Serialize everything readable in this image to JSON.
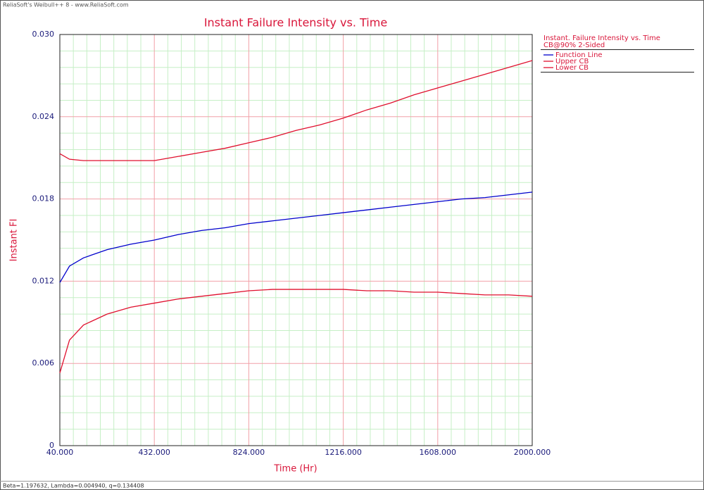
{
  "header": "ReliaSoft's Weibull++ 8 - www.ReliaSoft.com",
  "footer": "Beta=1.197632, Lambda=0.004940, q=0.134408",
  "chart_data": {
    "type": "line",
    "title": "Instant Failure Intensity vs. Time",
    "x_label": "Time (Hr)",
    "y_label": "Instant FI",
    "legend_title": "Instant. Failure Intensity vs. Time",
    "legend_subtitle": "CB@90% 2-Sided",
    "legend_position": "right",
    "grid": true,
    "x": [
      40,
      80,
      138,
      236,
      334,
      432,
      530,
      628,
      726,
      824,
      922,
      1020,
      1118,
      1216,
      1314,
      1412,
      1510,
      1608,
      1706,
      1804,
      1902,
      2000
    ],
    "series": [
      {
        "name": "Function Line",
        "color": "#0000cc",
        "values": [
          0.0119,
          0.0131,
          0.0137,
          0.0143,
          0.0147,
          0.015,
          0.0154,
          0.0157,
          0.0159,
          0.0162,
          0.0164,
          0.0166,
          0.0168,
          0.017,
          0.0172,
          0.0174,
          0.0176,
          0.0178,
          0.018,
          0.0181,
          0.0183,
          0.0185
        ]
      },
      {
        "name": "Upper CB",
        "color": "#e0102e",
        "values": [
          0.0213,
          0.0209,
          0.0208,
          0.0208,
          0.0208,
          0.0208,
          0.0211,
          0.0214,
          0.0217,
          0.0221,
          0.0225,
          0.023,
          0.0234,
          0.0239,
          0.0245,
          0.025,
          0.0256,
          0.0261,
          0.0266,
          0.0271,
          0.0276,
          0.0281
        ]
      },
      {
        "name": "Lower CB",
        "color": "#e0102e",
        "values": [
          0.0053,
          0.0077,
          0.0088,
          0.0096,
          0.0101,
          0.0104,
          0.0107,
          0.0109,
          0.0111,
          0.0113,
          0.0114,
          0.0114,
          0.0114,
          0.0114,
          0.0113,
          0.0113,
          0.0112,
          0.0112,
          0.0111,
          0.011,
          0.011,
          0.0109
        ]
      }
    ],
    "xlim": [
      40,
      2000
    ],
    "xticks": [
      {
        "value": 40,
        "label": "40.000"
      },
      {
        "value": 432,
        "label": "432.000"
      },
      {
        "value": 824,
        "label": "824.000"
      },
      {
        "value": 1216,
        "label": "1216.000"
      },
      {
        "value": 1608,
        "label": "1608.000"
      },
      {
        "value": 2000,
        "label": "2000.000"
      }
    ],
    "ylim": [
      0,
      0.03
    ],
    "yticks": [
      0,
      0.006,
      0.012,
      0.018,
      0.024,
      {
        "value": 0.03,
        "label": "0.030"
      }
    ]
  }
}
